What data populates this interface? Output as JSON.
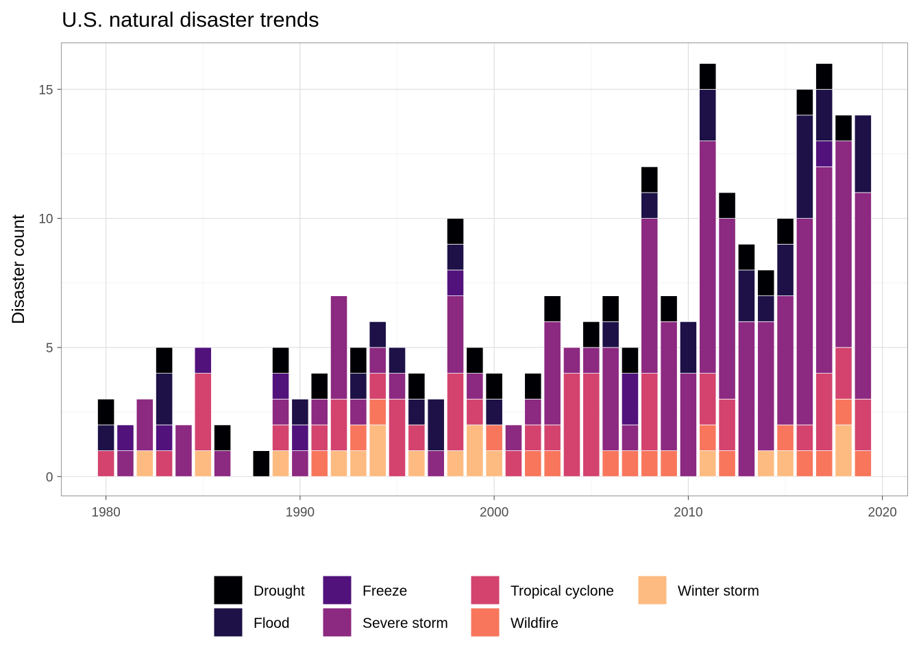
{
  "chart_data": {
    "type": "bar",
    "stacked": true,
    "title": "U.S. natural disaster trends",
    "xlabel": "",
    "ylabel": "Disaster count",
    "xlim": [
      1977.7,
      2021.3
    ],
    "ylim": [
      -0.75,
      16.8
    ],
    "x_ticks": [
      1980,
      1990,
      2000,
      2010,
      2020
    ],
    "y_ticks": [
      0,
      5,
      10,
      15
    ],
    "grid": true,
    "legend_position": "bottom",
    "series": [
      {
        "name": "Drought",
        "color": "#000004"
      },
      {
        "name": "Flood",
        "color": "#1d1147"
      },
      {
        "name": "Freeze",
        "color": "#51127c"
      },
      {
        "name": "Severe storm",
        "color": "#8c2981"
      },
      {
        "name": "Tropical cyclone",
        "color": "#d3436e"
      },
      {
        "name": "Wildfire",
        "color": "#f8765c"
      },
      {
        "name": "Winter storm",
        "color": "#febb81"
      }
    ],
    "years": [
      {
        "year": 1980,
        "counts": {
          "Drought": 1,
          "Flood": 1,
          "Tropical cyclone": 1
        }
      },
      {
        "year": 1981,
        "counts": {
          "Freeze": 1,
          "Severe storm": 1
        }
      },
      {
        "year": 1982,
        "counts": {
          "Severe storm": 2,
          "Winter storm": 1
        }
      },
      {
        "year": 1983,
        "counts": {
          "Drought": 1,
          "Flood": 2,
          "Freeze": 1,
          "Tropical cyclone": 1
        }
      },
      {
        "year": 1984,
        "counts": {
          "Severe storm": 2
        }
      },
      {
        "year": 1985,
        "counts": {
          "Freeze": 1,
          "Tropical cyclone": 3,
          "Winter storm": 1
        }
      },
      {
        "year": 1986,
        "counts": {
          "Drought": 1,
          "Severe storm": 1
        }
      },
      {
        "year": 1988,
        "counts": {
          "Drought": 1
        }
      },
      {
        "year": 1989,
        "counts": {
          "Drought": 1,
          "Freeze": 1,
          "Severe storm": 1,
          "Tropical cyclone": 1,
          "Winter storm": 1
        }
      },
      {
        "year": 1990,
        "counts": {
          "Flood": 1,
          "Freeze": 1,
          "Severe storm": 1
        }
      },
      {
        "year": 1991,
        "counts": {
          "Drought": 1,
          "Severe storm": 1,
          "Tropical cyclone": 1,
          "Wildfire": 1
        }
      },
      {
        "year": 1992,
        "counts": {
          "Severe storm": 4,
          "Tropical cyclone": 2,
          "Winter storm": 1
        }
      },
      {
        "year": 1993,
        "counts": {
          "Drought": 1,
          "Flood": 1,
          "Severe storm": 1,
          "Wildfire": 1,
          "Winter storm": 1
        }
      },
      {
        "year": 1994,
        "counts": {
          "Flood": 1,
          "Severe storm": 1,
          "Tropical cyclone": 1,
          "Wildfire": 1,
          "Winter storm": 2
        }
      },
      {
        "year": 1995,
        "counts": {
          "Flood": 1,
          "Severe storm": 1,
          "Tropical cyclone": 3
        }
      },
      {
        "year": 1996,
        "counts": {
          "Drought": 1,
          "Flood": 1,
          "Tropical cyclone": 1,
          "Winter storm": 1
        }
      },
      {
        "year": 1997,
        "counts": {
          "Flood": 2,
          "Severe storm": 1
        }
      },
      {
        "year": 1998,
        "counts": {
          "Drought": 1,
          "Flood": 1,
          "Freeze": 1,
          "Severe storm": 3,
          "Tropical cyclone": 3,
          "Winter storm": 1
        }
      },
      {
        "year": 1999,
        "counts": {
          "Drought": 1,
          "Severe storm": 1,
          "Tropical cyclone": 1,
          "Winter storm": 2
        }
      },
      {
        "year": 2000,
        "counts": {
          "Drought": 1,
          "Flood": 1,
          "Wildfire": 1,
          "Winter storm": 1
        }
      },
      {
        "year": 2001,
        "counts": {
          "Severe storm": 1,
          "Tropical cyclone": 1
        }
      },
      {
        "year": 2002,
        "counts": {
          "Drought": 1,
          "Severe storm": 1,
          "Tropical cyclone": 1,
          "Wildfire": 1
        }
      },
      {
        "year": 2003,
        "counts": {
          "Drought": 1,
          "Severe storm": 4,
          "Tropical cyclone": 1,
          "Wildfire": 1
        }
      },
      {
        "year": 2004,
        "counts": {
          "Severe storm": 1,
          "Tropical cyclone": 4
        }
      },
      {
        "year": 2005,
        "counts": {
          "Drought": 1,
          "Severe storm": 1,
          "Tropical cyclone": 4
        }
      },
      {
        "year": 2006,
        "counts": {
          "Drought": 1,
          "Flood": 1,
          "Severe storm": 4,
          "Wildfire": 1
        }
      },
      {
        "year": 2007,
        "counts": {
          "Drought": 1,
          "Freeze": 2,
          "Severe storm": 1,
          "Wildfire": 1
        }
      },
      {
        "year": 2008,
        "counts": {
          "Drought": 1,
          "Flood": 1,
          "Severe storm": 6,
          "Tropical cyclone": 3,
          "Wildfire": 1
        }
      },
      {
        "year": 2009,
        "counts": {
          "Drought": 1,
          "Severe storm": 5,
          "Wildfire": 1
        }
      },
      {
        "year": 2010,
        "counts": {
          "Flood": 2,
          "Severe storm": 4
        }
      },
      {
        "year": 2011,
        "counts": {
          "Drought": 1,
          "Flood": 2,
          "Severe storm": 9,
          "Tropical cyclone": 2,
          "Wildfire": 1,
          "Winter storm": 1
        }
      },
      {
        "year": 2012,
        "counts": {
          "Drought": 1,
          "Severe storm": 7,
          "Tropical cyclone": 2,
          "Wildfire": 1
        }
      },
      {
        "year": 2013,
        "counts": {
          "Drought": 1,
          "Flood": 2,
          "Severe storm": 6
        }
      },
      {
        "year": 2014,
        "counts": {
          "Drought": 1,
          "Flood": 1,
          "Severe storm": 5,
          "Winter storm": 1
        }
      },
      {
        "year": 2015,
        "counts": {
          "Drought": 1,
          "Flood": 2,
          "Severe storm": 5,
          "Wildfire": 1,
          "Winter storm": 1
        }
      },
      {
        "year": 2016,
        "counts": {
          "Drought": 1,
          "Flood": 4,
          "Severe storm": 8,
          "Tropical cyclone": 1,
          "Wildfire": 1
        }
      },
      {
        "year": 2017,
        "counts": {
          "Drought": 1,
          "Flood": 2,
          "Freeze": 1,
          "Severe storm": 8,
          "Tropical cyclone": 3,
          "Wildfire": 1
        }
      },
      {
        "year": 2018,
        "counts": {
          "Drought": 1,
          "Severe storm": 8,
          "Tropical cyclone": 2,
          "Wildfire": 1,
          "Winter storm": 2
        }
      },
      {
        "year": 2019,
        "counts": {
          "Flood": 3,
          "Severe storm": 8,
          "Tropical cyclone": 2,
          "Wildfire": 1
        }
      }
    ]
  }
}
